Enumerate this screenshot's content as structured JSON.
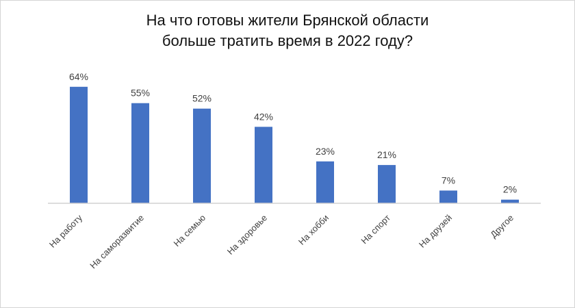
{
  "chart_data": {
    "type": "bar",
    "title_lines": [
      "На что готовы жители Брянской области",
      "больше тратить время в 2022 году?"
    ],
    "categories": [
      "На работу",
      "На саморазвитие",
      "На семью",
      "На здоровье",
      "На хобби",
      "На спорт",
      "На друзей",
      "Другое"
    ],
    "values": [
      64,
      55,
      52,
      42,
      23,
      21,
      7,
      2
    ],
    "value_labels": [
      "64%",
      "55%",
      "52%",
      "42%",
      "23%",
      "21%",
      "7%",
      "2%"
    ],
    "unit": "%",
    "bar_color": "#4472C4",
    "axis_color": "#d0d0d0",
    "grid": false,
    "legend": false
  }
}
